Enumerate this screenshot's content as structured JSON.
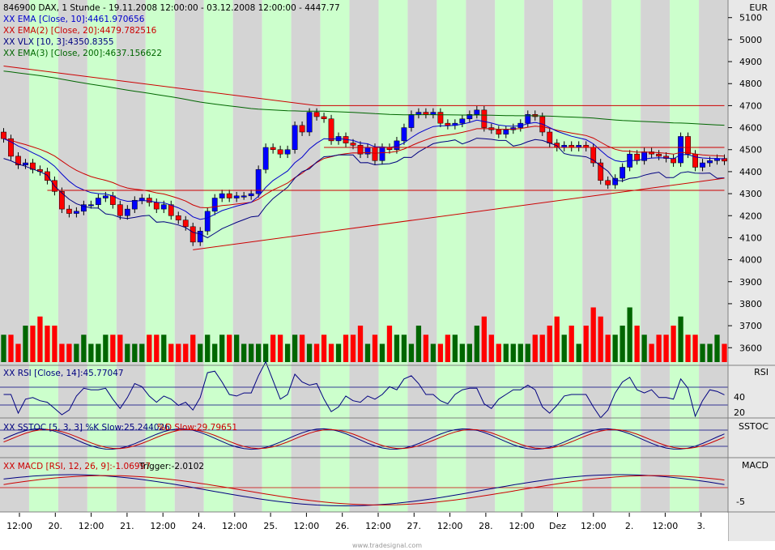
{
  "chart_data": {
    "type": "candlestick",
    "title": "846900  DAX, 1 Stunde - 19.11.2008 12:00:00 - 03.12.2008 12:00:00 - 4447.77",
    "currency": "EUR",
    "footer": "www.tradesignal.com",
    "price_axis": {
      "ticks": [
        "5100",
        "5000",
        "4900",
        "4800",
        "4700",
        "4600",
        "4500",
        "4400",
        "4300",
        "4200",
        "4100",
        "4000",
        "3900",
        "3800",
        "3700",
        "3600"
      ],
      "ylim": [
        3520,
        5180
      ]
    },
    "time_axis": {
      "labels": [
        "12:00",
        "20.",
        "12:00",
        "21.",
        "12:00",
        "24.",
        "12:00",
        "25.",
        "12:00",
        "26.",
        "12:00",
        "27.",
        "12:00",
        "28.",
        "12:00",
        "Dez",
        "12:00",
        "2.",
        "12:00",
        "3."
      ]
    },
    "bar_count": 100,
    "legend": [
      {
        "name": "XX EMA [Close, 10]:4461.970656",
        "color": "#0000cc"
      },
      {
        "name": "XX EMA(2) [Close, 20]:4479.782516",
        "color": "#cc0000"
      },
      {
        "name": "XX VLX [10, 3]:4350.8355",
        "color": "#000080"
      },
      {
        "name": "XX EMA(3) [Close, 200]:4637.156622",
        "color": "#006600"
      }
    ],
    "candles_close": [
      4550,
      4470,
      4430,
      4440,
      4410,
      4400,
      4360,
      4310,
      4230,
      4210,
      4220,
      4250,
      4250,
      4280,
      4290,
      4250,
      4200,
      4230,
      4270,
      4280,
      4260,
      4230,
      4250,
      4200,
      4180,
      4150,
      4080,
      4130,
      4220,
      4280,
      4300,
      4280,
      4290,
      4290,
      4300,
      4410,
      4510,
      4500,
      4480,
      4500,
      4610,
      4580,
      4670,
      4650,
      4640,
      4540,
      4560,
      4530,
      4520,
      4480,
      4510,
      4450,
      4510,
      4500,
      4540,
      4600,
      4660,
      4670,
      4660,
      4670,
      4620,
      4610,
      4620,
      4640,
      4660,
      4680,
      4600,
      4590,
      4570,
      4590,
      4600,
      4620,
      4660,
      4650,
      4580,
      4530,
      4510,
      4520,
      4510,
      4520,
      4510,
      4440,
      4360,
      4340,
      4370,
      4420,
      4480,
      4450,
      4490,
      4480,
      4470,
      4460,
      4440,
      4560,
      4480,
      4420,
      4440,
      4450,
      4460,
      4448
    ],
    "volume": [
      3,
      3,
      2,
      4,
      4,
      5,
      4,
      4,
      2,
      2,
      2,
      3,
      2,
      2,
      3,
      3,
      3,
      2,
      2,
      2,
      3,
      3,
      3,
      2,
      2,
      2,
      3,
      2,
      3,
      2,
      3,
      3,
      3,
      2,
      2,
      2,
      2,
      3,
      3,
      2,
      3,
      3,
      2,
      2,
      3,
      2,
      2,
      3,
      3,
      4,
      2,
      3,
      2,
      4,
      3,
      3,
      2,
      4,
      3,
      2,
      2,
      3,
      3,
      2,
      2,
      4,
      5,
      3,
      2,
      2,
      2,
      2,
      2,
      3,
      3,
      4,
      5,
      3,
      4,
      2,
      4,
      6,
      5,
      3,
      3,
      4,
      6,
      4,
      3,
      2,
      3,
      3,
      4,
      5,
      3,
      3,
      2,
      2,
      3,
      2
    ],
    "indicators": {
      "rsi": {
        "name": "XX RSI [Close, 14]:45.77047",
        "axis": [
          "40",
          "20"
        ]
      },
      "sstoc": {
        "k_label": "XX SSTOC [5, 3, 3]  %K Slow:25.244026",
        "d_label": "%D Slow:29.79651",
        "panel": "SSTOC"
      },
      "macd": {
        "name": "XX MACD [RSI, 12, 26, 9]:-1.06997",
        "trigger": "Trigger:-2.0102",
        "panel": "MACD",
        "axis": [
          "-5"
        ]
      }
    },
    "panel_labels": {
      "rsi": "RSI",
      "sstoc": "SSTOC",
      "macd": "MACD"
    },
    "colors": {
      "up": "#0000ff",
      "down": "#ff0000",
      "vol_up": "#006600",
      "vol_down": "#ff0000",
      "band_green": "#ccffcc",
      "band_gray": "#d4d4d4"
    }
  }
}
